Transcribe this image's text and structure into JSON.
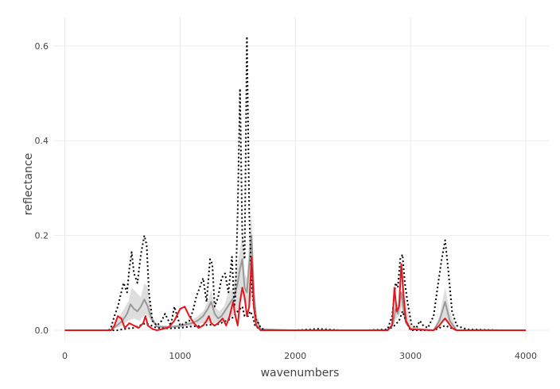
{
  "chart_data": {
    "type": "line",
    "xlabel": "wavenumbers",
    "ylabel": "reflectance",
    "xlim": [
      -100,
      4200
    ],
    "ylim": [
      -0.02,
      0.66
    ],
    "grid": true,
    "x_ticks": [
      0,
      1000,
      2000,
      3000,
      4000
    ],
    "y_ticks": [
      0.0,
      0.2,
      0.4,
      0.6
    ],
    "x_tick_labels": [
      "0",
      "1000",
      "2000",
      "3000",
      "4000"
    ],
    "y_tick_labels": [
      "0.0",
      "0.2",
      "0.4",
      "0.6"
    ],
    "colors": {
      "band_fill": "#d8d8d8",
      "median": "#999999",
      "envelope": "#000000",
      "highlight": "#e8141c",
      "grid": "#ebebeb"
    },
    "series": [
      {
        "role": "max_envelope",
        "style": "dotted",
        "x": [
          0,
          380,
          400,
          430,
          460,
          490,
          510,
          540,
          560,
          580,
          600,
          630,
          660,
          690,
          710,
          730,
          760,
          800,
          840,
          870,
          900,
          920,
          950,
          1000,
          1040,
          1080,
          1110,
          1140,
          1170,
          1200,
          1230,
          1260,
          1280,
          1300,
          1330,
          1360,
          1390,
          1420,
          1450,
          1470,
          1480,
          1500,
          1520,
          1540,
          1560,
          1580,
          1600,
          1620,
          1640,
          1660,
          1680,
          1700,
          1740,
          1780,
          2000,
          2200,
          2400,
          2600,
          2800,
          2840,
          2870,
          2890,
          2910,
          2930,
          2950,
          2980,
          3010,
          3050,
          3080,
          3110,
          3150,
          3200,
          3240,
          3270,
          3300,
          3330,
          3360,
          3400,
          3450,
          3500,
          3800,
          4000
        ],
        "y": [
          0.0,
          0.0,
          0.005,
          0.03,
          0.05,
          0.08,
          0.1,
          0.08,
          0.13,
          0.165,
          0.12,
          0.1,
          0.16,
          0.2,
          0.18,
          0.08,
          0.02,
          0.01,
          0.02,
          0.035,
          0.02,
          0.01,
          0.05,
          0.01,
          0.015,
          0.02,
          0.04,
          0.07,
          0.09,
          0.11,
          0.06,
          0.15,
          0.14,
          0.05,
          0.07,
          0.11,
          0.12,
          0.08,
          0.155,
          0.05,
          0.07,
          0.25,
          0.51,
          0.2,
          0.15,
          0.62,
          0.25,
          0.1,
          0.05,
          0.02,
          0.015,
          0.005,
          0.0,
          0.0,
          0.0,
          0.003,
          0.0,
          0.0,
          0.002,
          0.03,
          0.1,
          0.09,
          0.15,
          0.16,
          0.1,
          0.05,
          0.01,
          0.005,
          0.02,
          0.01,
          0.005,
          0.03,
          0.1,
          0.15,
          0.19,
          0.12,
          0.04,
          0.01,
          0.005,
          0.002,
          0.0,
          0.0
        ]
      },
      {
        "role": "min_envelope",
        "style": "dotted",
        "x": [
          0,
          400,
          450,
          500,
          550,
          600,
          650,
          700,
          750,
          800,
          900,
          1000,
          1100,
          1200,
          1250,
          1300,
          1350,
          1400,
          1450,
          1500,
          1540,
          1560,
          1590,
          1610,
          1630,
          1650,
          1700,
          2000,
          2800,
          2860,
          2900,
          2930,
          2960,
          3000,
          3200,
          3250,
          3300,
          3350,
          3400,
          4000
        ],
        "y": [
          0.0,
          0.0,
          0.0,
          0.002,
          0.004,
          0.005,
          0.01,
          0.015,
          0.01,
          0.005,
          0.004,
          0.005,
          0.008,
          0.01,
          0.012,
          0.01,
          0.015,
          0.02,
          0.025,
          0.04,
          0.05,
          0.03,
          0.03,
          0.04,
          0.03,
          0.01,
          0.0,
          0.0,
          0.0,
          0.01,
          0.02,
          0.04,
          0.02,
          0.0,
          0.0,
          0.005,
          0.01,
          0.005,
          0.0,
          0.0
        ]
      },
      {
        "role": "band_upper",
        "style": "fill",
        "x": [
          0,
          400,
          450,
          500,
          550,
          580,
          620,
          660,
          690,
          720,
          760,
          800,
          900,
          1000,
          1100,
          1150,
          1200,
          1240,
          1270,
          1300,
          1340,
          1380,
          1420,
          1460,
          1500,
          1520,
          1540,
          1560,
          1580,
          1600,
          1620,
          1640,
          1660,
          1700,
          2000,
          2800,
          2850,
          2880,
          2900,
          2930,
          2960,
          3000,
          3200,
          3250,
          3300,
          3340,
          3400,
          4000
        ],
        "y": [
          0.0,
          0.0,
          0.02,
          0.04,
          0.06,
          0.09,
          0.08,
          0.07,
          0.1,
          0.09,
          0.03,
          0.01,
          0.01,
          0.012,
          0.02,
          0.03,
          0.04,
          0.06,
          0.085,
          0.05,
          0.04,
          0.05,
          0.08,
          0.09,
          0.14,
          0.17,
          0.2,
          0.12,
          0.11,
          0.19,
          0.25,
          0.12,
          0.04,
          0.005,
          0.0,
          0.0,
          0.02,
          0.06,
          0.05,
          0.11,
          0.06,
          0.01,
          0.0,
          0.03,
          0.09,
          0.04,
          0.0,
          0.0
        ]
      },
      {
        "role": "band_lower",
        "style": "fill",
        "x": [
          0,
          400,
          450,
          500,
          550,
          600,
          650,
          700,
          750,
          800,
          900,
          1000,
          1100,
          1200,
          1300,
          1400,
          1500,
          1540,
          1570,
          1600,
          1620,
          1640,
          1660,
          1700,
          2000,
          2800,
          2860,
          2900,
          2930,
          2960,
          3000,
          3200,
          3300,
          3400,
          4000
        ],
        "y": [
          0.0,
          0.0,
          0.005,
          0.01,
          0.02,
          0.025,
          0.02,
          0.035,
          0.02,
          0.005,
          0.005,
          0.006,
          0.01,
          0.015,
          0.015,
          0.02,
          0.04,
          0.07,
          0.05,
          0.05,
          0.07,
          0.04,
          0.01,
          0.0,
          0.0,
          0.0,
          0.02,
          0.03,
          0.05,
          0.02,
          0.0,
          0.0,
          0.02,
          0.0,
          0.0
        ]
      },
      {
        "role": "median",
        "style": "solid",
        "x": [
          0,
          400,
          450,
          500,
          540,
          570,
          600,
          630,
          660,
          690,
          720,
          750,
          800,
          900,
          1000,
          1100,
          1150,
          1200,
          1240,
          1270,
          1300,
          1330,
          1360,
          1400,
          1440,
          1470,
          1500,
          1520,
          1540,
          1560,
          1580,
          1600,
          1620,
          1640,
          1660,
          1700,
          2000,
          2800,
          2850,
          2870,
          2890,
          2920,
          2940,
          2960,
          3000,
          3200,
          3250,
          3300,
          3340,
          3400,
          4000
        ],
        "y": [
          0.0,
          0.0,
          0.01,
          0.02,
          0.035,
          0.055,
          0.045,
          0.04,
          0.05,
          0.065,
          0.05,
          0.025,
          0.008,
          0.007,
          0.009,
          0.015,
          0.02,
          0.03,
          0.045,
          0.06,
          0.035,
          0.025,
          0.03,
          0.045,
          0.06,
          0.07,
          0.1,
          0.13,
          0.15,
          0.09,
          0.08,
          0.14,
          0.2,
          0.08,
          0.025,
          0.002,
          0.0,
          0.0,
          0.015,
          0.045,
          0.035,
          0.08,
          0.04,
          0.015,
          0.003,
          0.0,
          0.02,
          0.06,
          0.02,
          0.0,
          0.0
        ]
      },
      {
        "role": "highlight",
        "style": "solid",
        "x": [
          0,
          400,
          430,
          460,
          490,
          520,
          560,
          600,
          640,
          680,
          700,
          720,
          760,
          800,
          850,
          900,
          950,
          1000,
          1040,
          1080,
          1120,
          1160,
          1200,
          1230,
          1250,
          1270,
          1300,
          1330,
          1370,
          1400,
          1430,
          1460,
          1480,
          1500,
          1520,
          1540,
          1560,
          1580,
          1600,
          1620,
          1640,
          1660,
          1700,
          2000,
          2800,
          2840,
          2860,
          2880,
          2900,
          2920,
          2940,
          2960,
          3000,
          3200,
          3250,
          3280,
          3300,
          3330,
          3360,
          3400,
          4000
        ],
        "y": [
          0.0,
          0.0,
          0.01,
          0.03,
          0.025,
          0.005,
          0.015,
          0.01,
          0.005,
          0.015,
          0.03,
          0.01,
          0.003,
          0.0,
          0.003,
          0.006,
          0.02,
          0.045,
          0.05,
          0.03,
          0.015,
          0.005,
          0.01,
          0.02,
          0.03,
          0.015,
          0.01,
          0.015,
          0.025,
          0.01,
          0.03,
          0.06,
          0.03,
          0.01,
          0.06,
          0.09,
          0.07,
          0.03,
          0.05,
          0.155,
          0.05,
          0.01,
          0.0,
          0.0,
          0.0,
          0.01,
          0.09,
          0.04,
          0.05,
          0.14,
          0.07,
          0.02,
          0.002,
          0.0,
          0.01,
          0.02,
          0.025,
          0.015,
          0.005,
          0.0,
          0.0
        ]
      }
    ]
  }
}
